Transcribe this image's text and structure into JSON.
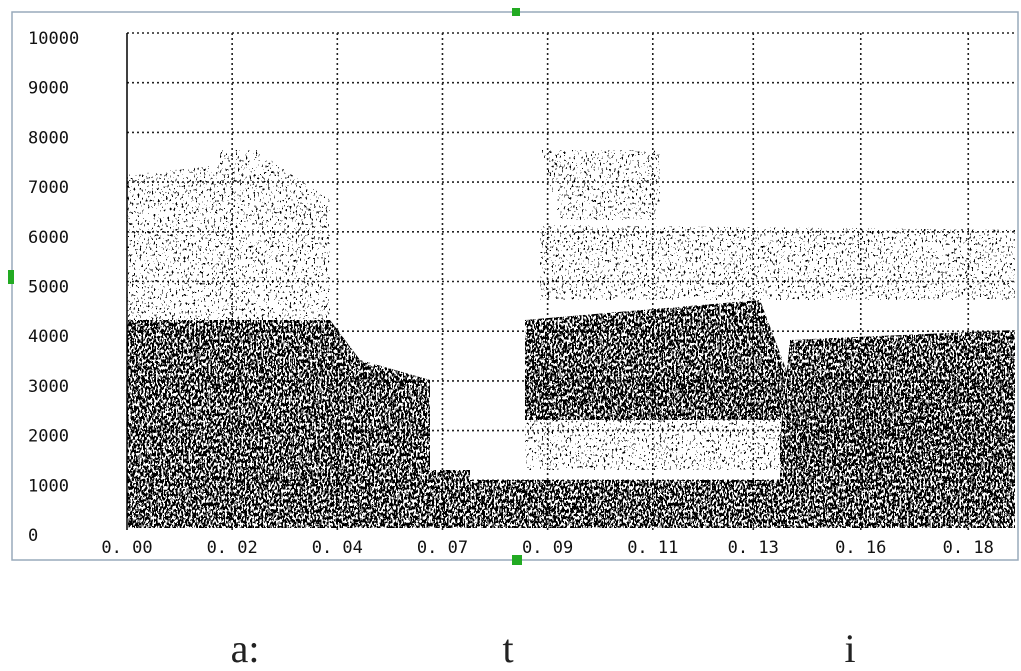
{
  "chart_data": {
    "type": "spectrogram",
    "xlim": [
      0,
      0.19
    ],
    "xticks": [
      {
        "value": 0,
        "label": "0. 00"
      },
      {
        "value": 0.0225,
        "label": "0. 02"
      },
      {
        "value": 0.045,
        "label": "0. 04"
      },
      {
        "value": 0.0675,
        "label": "0. 07"
      },
      {
        "value": 0.09,
        "label": "0. 09"
      },
      {
        "value": 0.1125,
        "label": "0. 11"
      },
      {
        "value": 0.134,
        "label": "0. 13"
      },
      {
        "value": 0.157,
        "label": "0. 16"
      },
      {
        "value": 0.18,
        "label": "0. 18"
      }
    ],
    "ylim": [
      0,
      10000
    ],
    "yticks": [
      0,
      1000,
      2000,
      3000,
      4000,
      5000,
      6000,
      7000,
      8000,
      9000,
      10000
    ],
    "grid": true,
    "annotations": [
      "a:",
      "t",
      "i"
    ]
  }
}
